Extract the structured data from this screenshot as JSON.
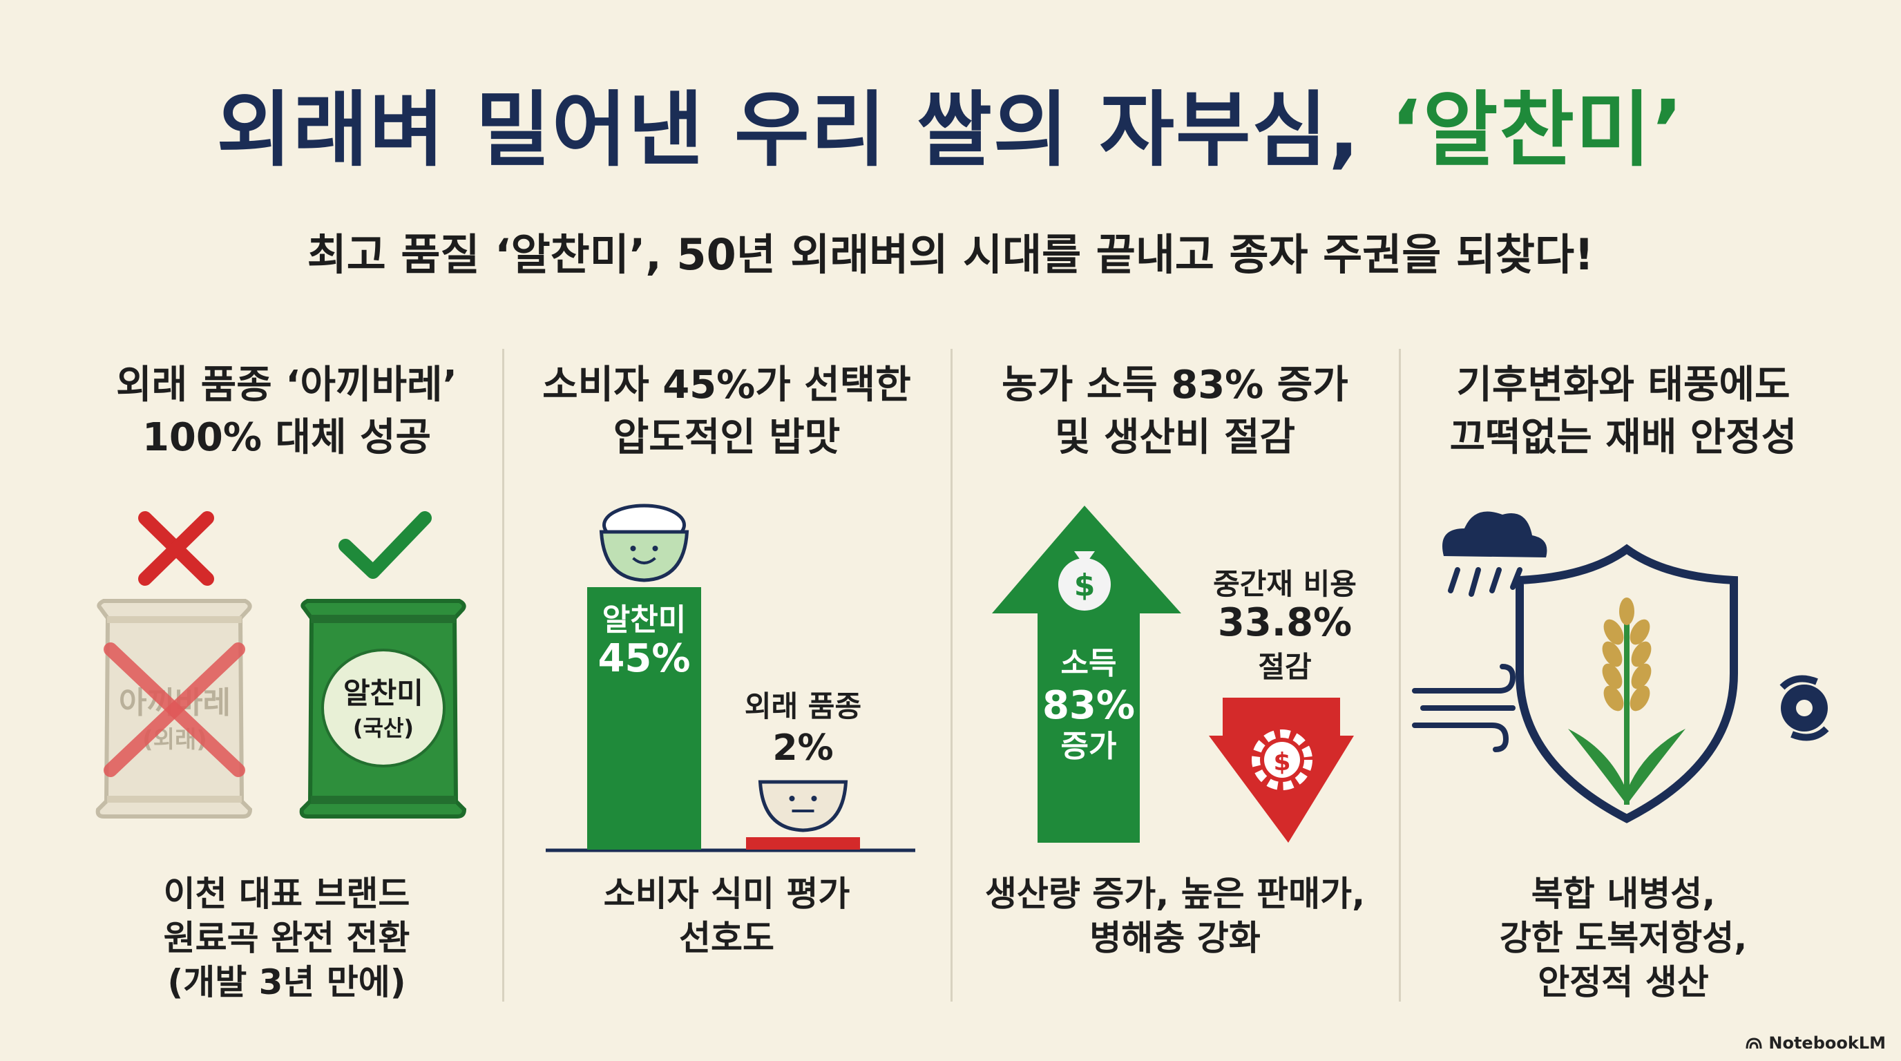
{
  "header": {
    "title_main": "외래벼 밀어낸 우리 쌀의 자부심, ",
    "title_accent": "‘알찬미’",
    "subtitle": "최고 품질 ‘알찬미’, 50년 외래벼의 시대를 끝내고 종자 주권을 되찾다!"
  },
  "columns": [
    {
      "heading": [
        "외래 품종 ‘아끼바레’",
        "100% 대체 성공"
      ],
      "bag_left": {
        "name": "아끼바레",
        "origin": "(외래)"
      },
      "bag_right": {
        "name": "알찬미",
        "origin": "(국산)"
      },
      "footer": [
        "이천 대표 브랜드",
        "원료곡 완전 전환",
        "(개발 3년 만에)"
      ]
    },
    {
      "heading": [
        "소비자 45%가 선택한",
        "압도적인 밥맛"
      ],
      "footer": [
        "소비자 식미 평가",
        "선호도"
      ]
    },
    {
      "heading": [
        "농가 소득 83% 증가",
        "및 생산비 절감"
      ],
      "up_arrow": {
        "label": "소득",
        "value": "83%",
        "suffix": "증가"
      },
      "down_arrow": {
        "label": "중간재 비용",
        "value": "33.8%",
        "suffix": "절감"
      },
      "footer": [
        "생산량 증가, 높은 판매가,",
        "병해충 강화"
      ]
    },
    {
      "heading": [
        "기후변화와 태풍에도",
        "끄떡없는 재배 안정성"
      ],
      "footer": [
        "복합 내병성,",
        "강한 도복저항성,",
        "안정적 생산"
      ]
    }
  ],
  "chart_data": {
    "type": "bar",
    "categories": [
      "알찬미",
      "외래 품종"
    ],
    "values": [
      45,
      2
    ],
    "value_labels": [
      "45%",
      "2%"
    ],
    "colors": [
      "#1f8a3a",
      "#d42a2a"
    ]
  },
  "colors": {
    "navy": "#1b2d55",
    "green": "#1f8a3a",
    "red": "#d42a2a",
    "background": "#f6f1e2"
  },
  "brand": "NotebookLM"
}
